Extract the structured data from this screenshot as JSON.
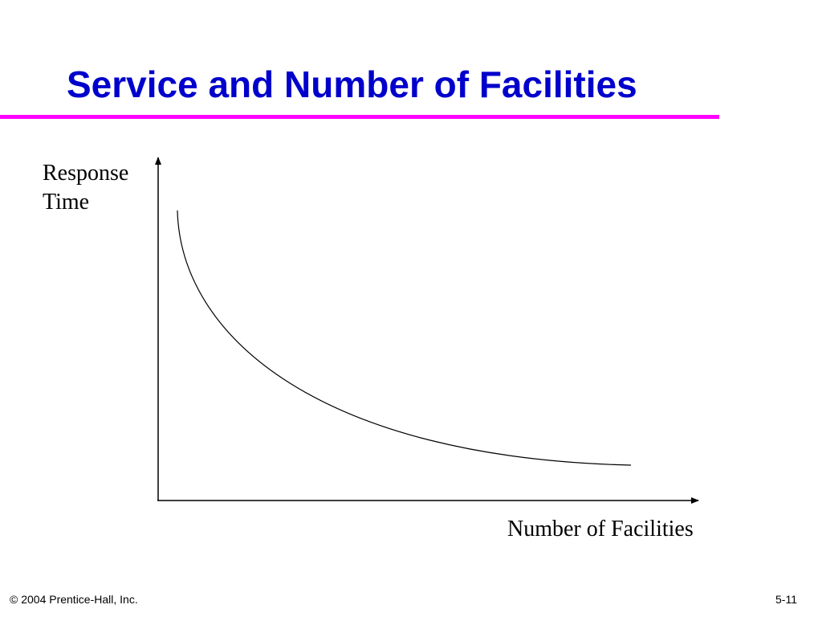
{
  "slide": {
    "title": "Service and Number of Facilities",
    "footer_copyright": "© 2004 Prentice-Hall, Inc.",
    "page_number": "5-11"
  },
  "diagram": {
    "y_axis_label_line1": "Response",
    "y_axis_label_line2": "Time",
    "x_axis_label": "Number of Facilities",
    "curve": "decreasing, convex",
    "colors": {
      "title": "#0000cc",
      "title_rule": "#ff00ff",
      "axes": "#000000",
      "curve": "#000000"
    }
  }
}
